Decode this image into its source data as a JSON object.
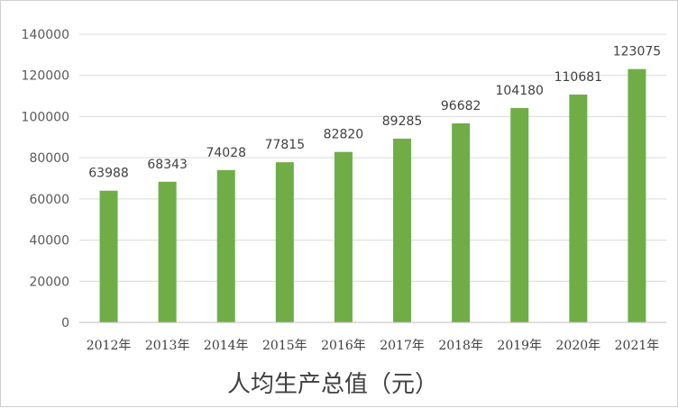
{
  "chart_data": {
    "type": "bar",
    "title": "人均生产总值（元）",
    "categories": [
      "2012年",
      "2013年",
      "2014年",
      "2015年",
      "2016年",
      "2017年",
      "2018年",
      "2019年",
      "2020年",
      "2021年"
    ],
    "values": [
      63988,
      68343,
      74028,
      77815,
      82820,
      89285,
      96682,
      104180,
      110681,
      123075
    ],
    "ylim": [
      0,
      140000
    ],
    "yticks": [
      0,
      20000,
      40000,
      60000,
      80000,
      100000,
      120000,
      140000
    ],
    "grid": true,
    "bar_color": "#70ad47"
  }
}
